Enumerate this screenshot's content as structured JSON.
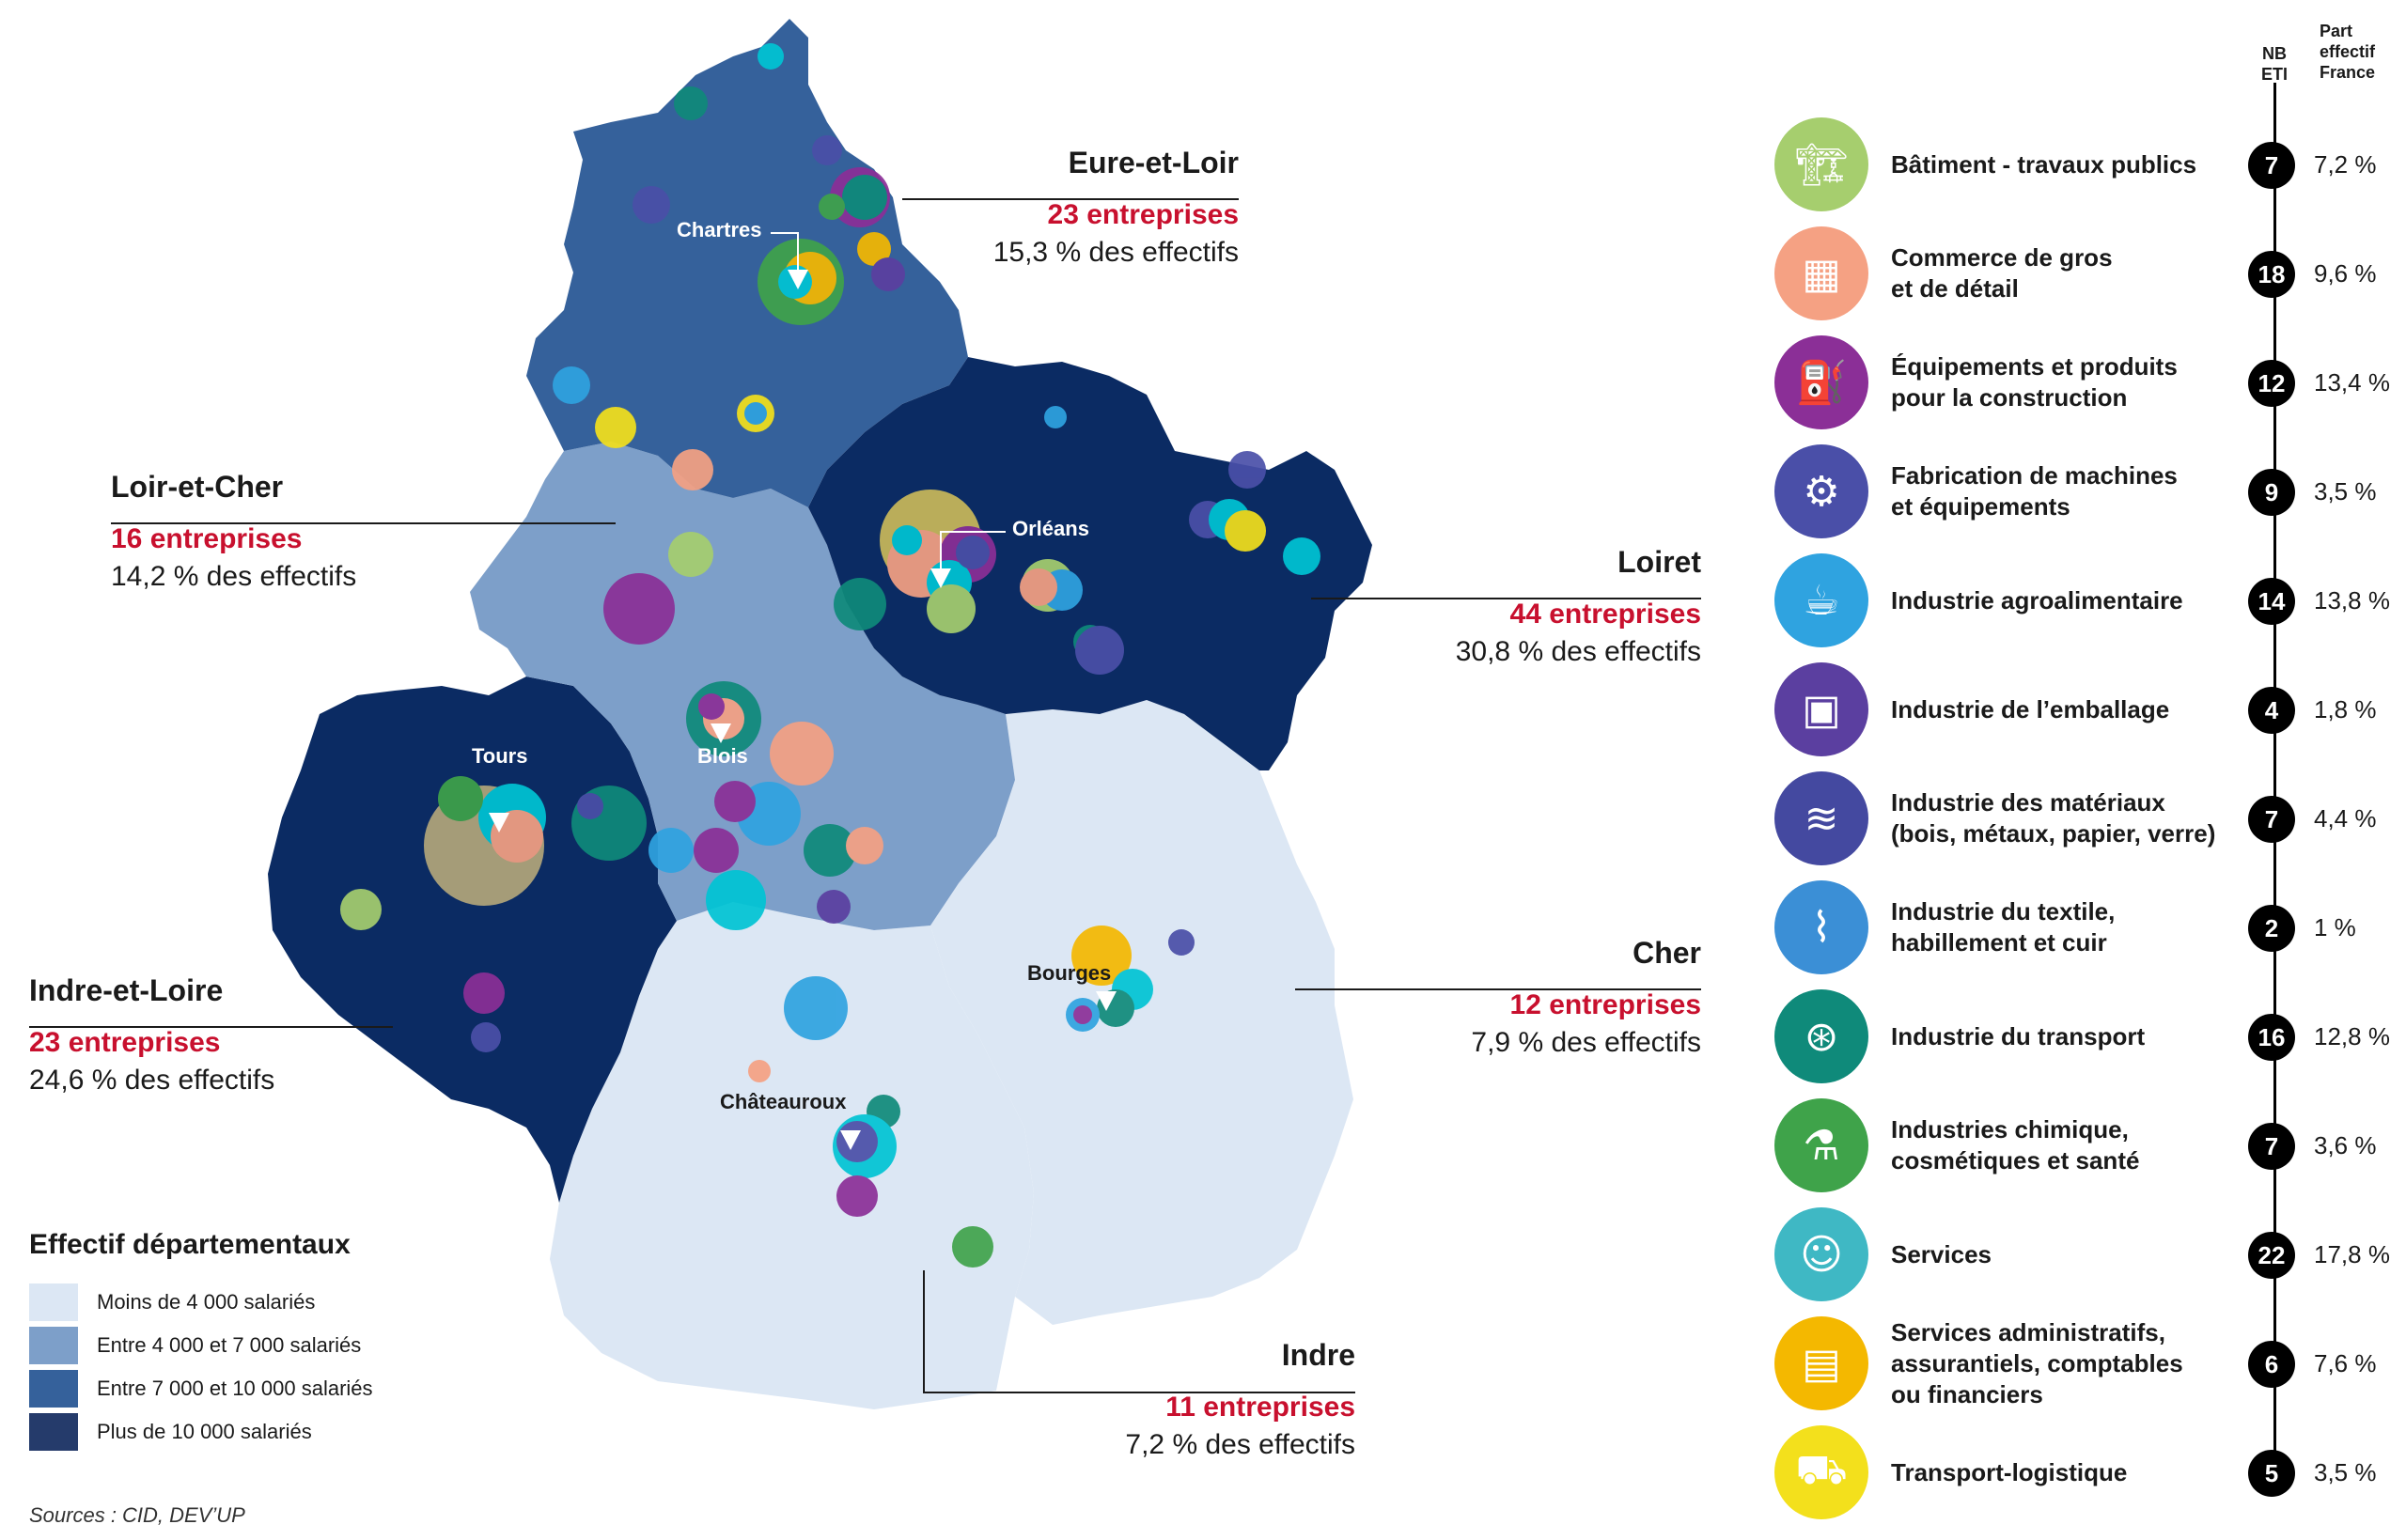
{
  "colors": {
    "low": "#dce7f4",
    "mid": "#7d9fc9",
    "high": "#35619b",
    "top": "#0b2b63",
    "accent": "#c8102e"
  },
  "departments": [
    {
      "id": "eure-et-loir",
      "name": "Eure-et-Loir",
      "count": "23 entreprises",
      "share": "15,3 % des effectifs"
    },
    {
      "id": "loir-et-cher",
      "name": "Loir-et-Cher",
      "count": "16 entreprises",
      "share": "14,2 % des effectifs"
    },
    {
      "id": "loiret",
      "name": "Loiret",
      "count": "44 entreprises",
      "share": "30,8 % des effectifs"
    },
    {
      "id": "indre-et-loire",
      "name": "Indre-et-Loire",
      "count": "23 entreprises",
      "share": "24,6 % des effectifs"
    },
    {
      "id": "cher",
      "name": "Cher",
      "count": "12 entreprises",
      "share": "7,9 % des effectifs"
    },
    {
      "id": "indre",
      "name": "Indre",
      "count": "11 entreprises",
      "share": "7,2 % des effectifs"
    }
  ],
  "cities": [
    "Chartres",
    "Orléans",
    "Blois",
    "Tours",
    "Bourges",
    "Châteauroux"
  ],
  "legend": {
    "title": "Effectif départementaux",
    "items": [
      {
        "label": "Moins de 4 000 salariés",
        "color": "#dce7f4"
      },
      {
        "label": "Entre 4 000 et 7 000 salariés",
        "color": "#7d9fc9"
      },
      {
        "label": "Entre 7 000 et 10 000 salariés",
        "color": "#35619b"
      },
      {
        "label": "Plus de 10 000 salariés",
        "color": "#253b6b"
      }
    ]
  },
  "source": "Sources : CID, DEV’UP",
  "headers": {
    "nb": "NB\nETI",
    "part": "Part\neffectif\nFrance"
  },
  "sectors": [
    {
      "label": "Bâtiment - travaux publics",
      "nb": "7",
      "part": "7,2 %",
      "color": "#a6ce6e",
      "icon": "crane-icon"
    },
    {
      "label": "Commerce de gros\net de détail",
      "nb": "18",
      "part": "9,6 %",
      "color": "#f5a183",
      "icon": "shelves-icon"
    },
    {
      "label": "Équipements et produits\npour la construction",
      "nb": "12",
      "part": "13,4 %",
      "color": "#8b2f97",
      "icon": "paint-bucket-icon"
    },
    {
      "label": "Fabrication de machines\net équipements",
      "nb": "9",
      "part": "3,5 %",
      "color": "#4a4fa8",
      "icon": "robot-arm-icon"
    },
    {
      "label": "Industrie agroalimentaire",
      "nb": "14",
      "part": "13,8 %",
      "color": "#2fa3e0",
      "icon": "food-icon"
    },
    {
      "label": "Industrie de l’emballage",
      "nb": "4",
      "part": "1,8 %",
      "color": "#5b3fa0",
      "icon": "package-icon"
    },
    {
      "label": "Industrie des matériaux\n(bois, métaux, papier, verre)",
      "nb": "7",
      "part": "4,4 %",
      "color": "#4449a0",
      "icon": "logs-icon"
    },
    {
      "label": "Industrie du textile,\nhabillement et cuir",
      "nb": "2",
      "part": "1 %",
      "color": "#3b8fd6",
      "icon": "thread-icon"
    },
    {
      "label": "Industrie du transport",
      "nb": "16",
      "part": "12,8 %",
      "color": "#0f8a7a",
      "icon": "wheel-icon"
    },
    {
      "label": "Industries chimique,\ncosmétiques et santé",
      "nb": "7",
      "part": "3,6 %",
      "color": "#3fa34a",
      "icon": "chemistry-icon"
    },
    {
      "label": "Services",
      "nb": "22",
      "part": "17,8 %",
      "color": "#3fb8c4",
      "icon": "people-icon"
    },
    {
      "label": "Services administratifs,\nassurantiels, comptables\nou financiers",
      "nb": "6",
      "part": "7,6 %",
      "color": "#f4b800",
      "icon": "presentation-icon"
    },
    {
      "label": "Transport-logistique",
      "nb": "5",
      "part": "3,5 %",
      "color": "#f3e01c",
      "icon": "truck-icon"
    }
  ]
}
